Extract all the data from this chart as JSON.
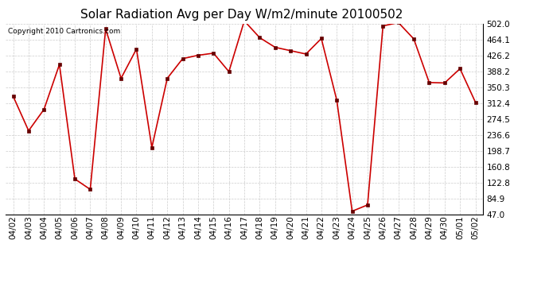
{
  "title": "Solar Radiation Avg per Day W/m2/minute 20100502",
  "copyright": "Copyright 2010 Cartronics.com",
  "labels": [
    "04/02",
    "04/03",
    "04/04",
    "04/05",
    "04/06",
    "04/07",
    "04/08",
    "04/09",
    "04/10",
    "04/11",
    "04/12",
    "04/13",
    "04/14",
    "04/15",
    "04/16",
    "04/17",
    "04/18",
    "04/19",
    "04/20",
    "04/21",
    "04/22",
    "04/23",
    "04/24",
    "04/25",
    "04/26",
    "04/27",
    "04/28",
    "04/29",
    "04/30",
    "05/01",
    "05/02"
  ],
  "values": [
    329,
    247,
    298,
    405,
    132,
    107,
    490,
    372,
    442,
    207,
    372,
    419,
    427,
    432,
    388,
    509,
    469,
    446,
    438,
    430,
    467,
    320,
    55,
    70,
    497,
    505,
    466,
    362,
    361,
    395,
    315
  ],
  "line_color": "#cc0000",
  "marker_color": "#660000",
  "bg_color": "#ffffff",
  "grid_color": "#cccccc",
  "ymin": 47.0,
  "ymax": 502.0,
  "yticks": [
    47.0,
    84.9,
    122.8,
    160.8,
    198.7,
    236.6,
    274.5,
    312.4,
    350.3,
    388.2,
    426.2,
    464.1,
    502.0
  ],
  "title_fontsize": 11,
  "tick_fontsize": 7.5,
  "copyright_fontsize": 6.5
}
